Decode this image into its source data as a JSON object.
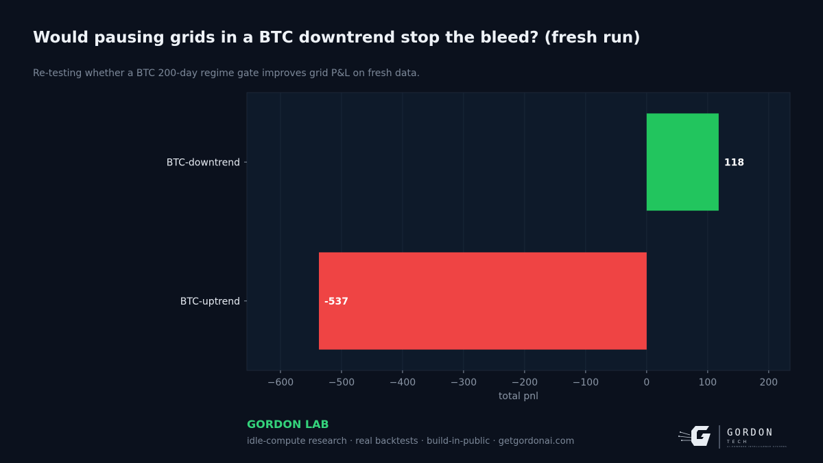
{
  "header": {
    "title": "Would pausing grids in a BTC downtrend stop the bleed? (fresh run)",
    "subtitle": "Re-testing whether a BTC 200-day regime gate improves grid P&L on fresh data."
  },
  "chart_data": {
    "type": "bar",
    "orientation": "horizontal",
    "categories": [
      "BTC-downtrend",
      "BTC-uptrend"
    ],
    "values": [
      118,
      -537
    ],
    "data_labels": [
      "118",
      "-537"
    ],
    "bar_colors": [
      "#22c55e",
      "#ef4444"
    ],
    "xlabel": "total pnl",
    "ylabel": "",
    "xlim": [
      -655,
      235
    ],
    "xticks": [
      -600,
      -500,
      -400,
      -300,
      -200,
      -100,
      0,
      100,
      200
    ],
    "xtick_labels": [
      "−600",
      "−500",
      "−400",
      "−300",
      "−200",
      "−100",
      "0",
      "100",
      "200"
    ],
    "grid": "vertical",
    "legend": "none"
  },
  "footer": {
    "brand": "GORDON LAB",
    "tagline": "idle-compute research · real backtests · build-in-public · getgordonai.com",
    "logo_word": "GORDON",
    "logo_sub": "TECH",
    "logo_tiny": "AI-POWERED INTELLIGENCE SYSTEMS"
  },
  "colors": {
    "background": "#0b111d",
    "plot_background": "#0e1a2a",
    "grid": "#1a2738",
    "axis_text": "#8a95a5",
    "label_text": "#e6ebf2",
    "brand_green": "#34d27b"
  }
}
